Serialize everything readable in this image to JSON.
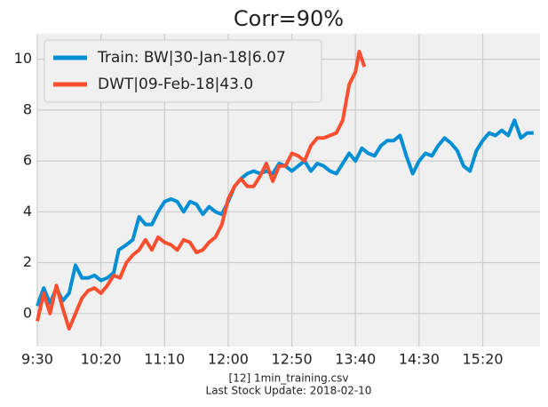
{
  "chart_data": {
    "type": "line",
    "title": "Corr=90%",
    "footer": [
      "[12] 1min_training.csv",
      "Last Stock Update: 2018-02-10"
    ],
    "legend": "upper left",
    "grid": true,
    "xlim": [
      570,
      965
    ],
    "xticks": [
      {
        "value": 570,
        "label": "9:30"
      },
      {
        "value": 620,
        "label": "10:20"
      },
      {
        "value": 670,
        "label": "11:10"
      },
      {
        "value": 720,
        "label": "12:00"
      },
      {
        "value": 770,
        "label": "12:50"
      },
      {
        "value": 820,
        "label": "13:40"
      },
      {
        "value": 870,
        "label": "14:30"
      },
      {
        "value": 920,
        "label": "15:20"
      }
    ],
    "ylim": [
      -1.3,
      11
    ],
    "yticks": [
      0,
      2,
      4,
      6,
      8,
      10
    ],
    "series": [
      {
        "name": "Train: BW|30-Jan-18|6.07",
        "color": "#008fd5",
        "x": [
          570,
          575,
          580,
          585,
          590,
          595,
          600,
          605,
          610,
          615,
          620,
          625,
          630,
          634,
          640,
          645,
          650,
          655,
          660,
          665,
          670,
          675,
          680,
          685,
          690,
          695,
          700,
          705,
          710,
          715,
          720,
          725,
          730,
          735,
          740,
          745,
          750,
          755,
          760,
          765,
          770,
          775,
          780,
          785,
          790,
          795,
          800,
          805,
          810,
          815,
          820,
          825,
          830,
          835,
          840,
          845,
          850,
          855,
          860,
          865,
          870,
          875,
          880,
          885,
          890,
          895,
          900,
          905,
          910,
          915,
          920,
          925,
          930,
          935,
          940,
          945,
          950,
          955,
          960
        ],
        "values": [
          0.3,
          1.0,
          0.4,
          1.0,
          0.5,
          0.8,
          1.9,
          1.4,
          1.4,
          1.5,
          1.3,
          1.4,
          1.6,
          2.5,
          2.7,
          2.9,
          3.8,
          3.5,
          3.5,
          4.0,
          4.4,
          4.5,
          4.4,
          4.0,
          4.4,
          4.3,
          3.9,
          4.2,
          4.0,
          3.9,
          4.4,
          5.0,
          5.3,
          5.5,
          5.6,
          5.5,
          5.6,
          5.5,
          5.9,
          5.8,
          5.6,
          5.8,
          6.0,
          5.6,
          5.9,
          5.8,
          5.6,
          5.5,
          5.9,
          6.3,
          6.0,
          6.5,
          6.3,
          6.2,
          6.6,
          6.8,
          6.8,
          7.0,
          6.2,
          5.5,
          6.0,
          6.3,
          6.2,
          6.6,
          6.9,
          6.7,
          6.4,
          5.8,
          5.6,
          6.4,
          6.8,
          7.1,
          7.0,
          7.2,
          7.0,
          7.6,
          6.9,
          7.1,
          7.1
        ]
      },
      {
        "name": "DWT|09-Feb-18|43.0",
        "color": "#fc4f30",
        "x": [
          570,
          575,
          580,
          585,
          590,
          595,
          600,
          605,
          610,
          615,
          620,
          625,
          630,
          635,
          640,
          645,
          650,
          655,
          660,
          665,
          670,
          675,
          680,
          685,
          690,
          695,
          700,
          705,
          710,
          715,
          720,
          725,
          730,
          735,
          740,
          745,
          750,
          755,
          760,
          765,
          770,
          775,
          780,
          785,
          790,
          795,
          800,
          805,
          810,
          815,
          820,
          823,
          827
        ],
        "values": [
          -0.3,
          0.8,
          0.0,
          1.1,
          0.2,
          -0.6,
          0.0,
          0.6,
          0.9,
          1.0,
          0.8,
          1.1,
          1.5,
          1.4,
          2.0,
          2.3,
          2.5,
          2.9,
          2.5,
          3.0,
          2.8,
          2.7,
          2.5,
          2.9,
          2.8,
          2.4,
          2.5,
          2.8,
          3.0,
          3.5,
          4.5,
          5.0,
          5.3,
          5.0,
          5.0,
          5.4,
          5.9,
          5.2,
          5.8,
          5.8,
          6.3,
          6.2,
          6.0,
          6.6,
          6.9,
          6.9,
          7.0,
          7.1,
          7.6,
          9.0,
          9.5,
          10.3,
          9.7
        ]
      }
    ]
  }
}
